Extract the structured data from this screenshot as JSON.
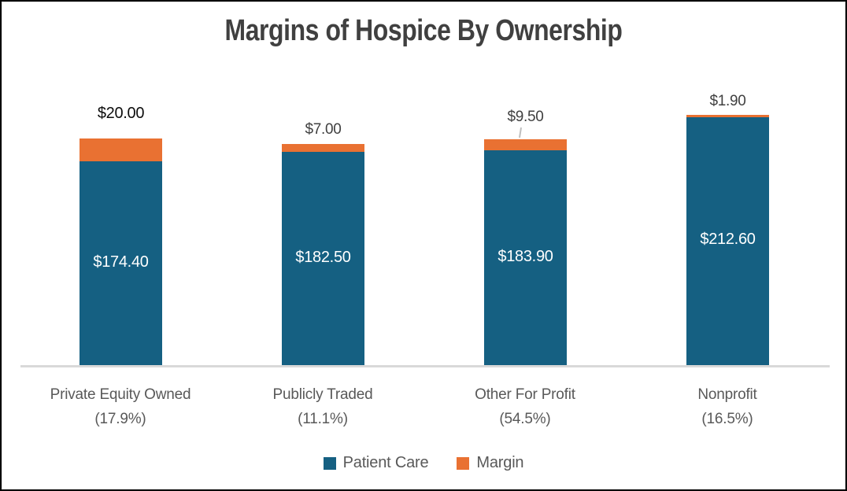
{
  "window": {
    "title": "Margins of Hospice By Ownership"
  },
  "chart_data": {
    "type": "bar",
    "stacked": true,
    "title": "Margins of Hospice By Ownership",
    "y_axis_visible": false,
    "grid": false,
    "baseline_color": "#d9d9d9",
    "legend": {
      "position": "bottom"
    },
    "categories": [
      {
        "label": "Private Equity Owned",
        "sublabel": "(17.9%)"
      },
      {
        "label": "Publicly Traded",
        "sublabel": "(11.1%)"
      },
      {
        "label": "Other For Profit",
        "sublabel": "(54.5%)"
      },
      {
        "label": "Nonprofit",
        "sublabel": "(16.5%)"
      }
    ],
    "series": [
      {
        "name": "Patient Care",
        "color": "#156082",
        "values": [
          174.4,
          182.5,
          183.9,
          212.6
        ],
        "labels": [
          "$174.40",
          "$182.50",
          "$183.90",
          "$212.60"
        ]
      },
      {
        "name": "Margin",
        "color": "#e97132",
        "values": [
          20.0,
          7.0,
          9.5,
          1.9
        ],
        "labels": [
          "$20.00",
          "$7.00",
          "$9.50",
          "$1.90"
        ]
      }
    ]
  }
}
